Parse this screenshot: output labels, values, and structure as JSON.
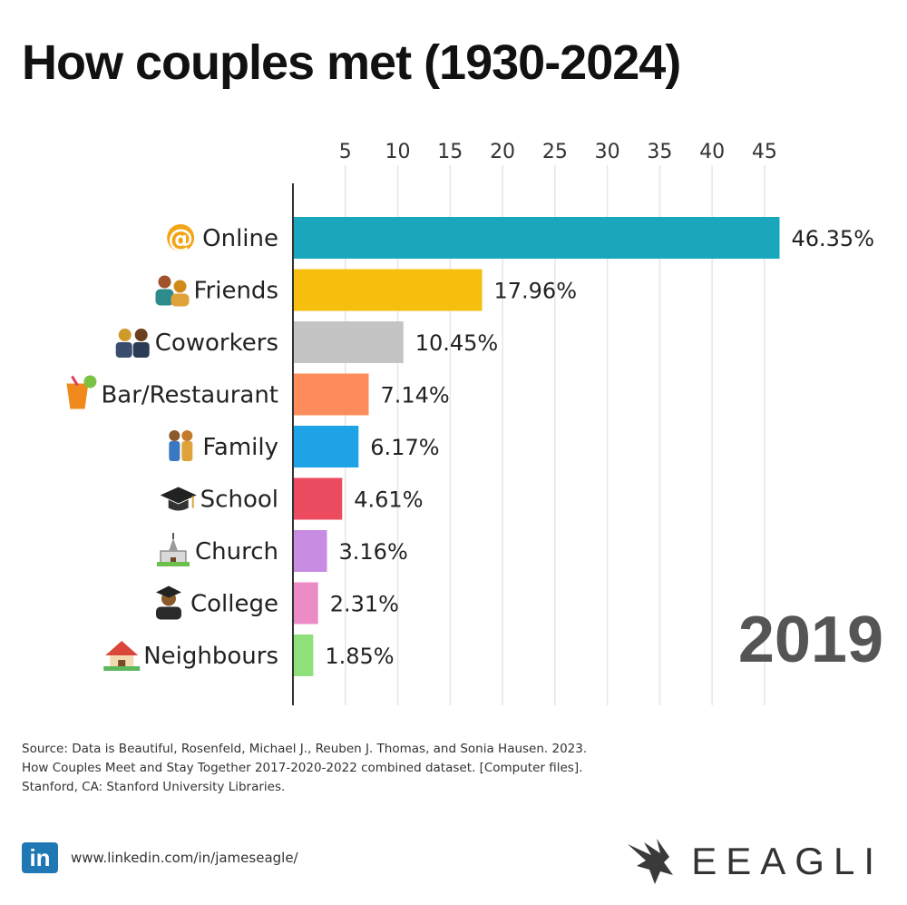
{
  "title": "How couples met (1930-2024)",
  "year": "2019",
  "chart_data": {
    "type": "bar",
    "orientation": "horizontal",
    "title": "How couples met (1930-2024)",
    "xlim": [
      0,
      47
    ],
    "x_ticks": [
      5,
      10,
      15,
      20,
      25,
      30,
      35,
      40,
      45
    ],
    "x_axis_position": "top",
    "grid": true,
    "categories": [
      "Online",
      "Friends",
      "Coworkers",
      "Bar/Restaurant",
      "Family",
      "School",
      "Church",
      "College",
      "Neighbours"
    ],
    "values": [
      46.35,
      17.96,
      10.45,
      7.14,
      6.17,
      4.61,
      3.16,
      2.31,
      1.85
    ],
    "value_labels": [
      "46.35%",
      "17.96%",
      "10.45%",
      "7.14%",
      "6.17%",
      "4.61%",
      "3.16%",
      "2.31%",
      "1.85%"
    ],
    "colors": [
      "#1aa6bc",
      "#f6be0d",
      "#c4c4c4",
      "#fc8c5c",
      "#1ea3e6",
      "#ec4a5f",
      "#c88ce3",
      "#eb8cc6",
      "#8fe07a"
    ],
    "icons": [
      "at-sign-icon",
      "friends-icon",
      "coworkers-icon",
      "tropical-drink-icon",
      "family-icon",
      "graduation-cap-icon",
      "church-icon",
      "graduate-icon",
      "house-icon"
    ]
  },
  "source": [
    "Source: Data is Beautiful, Rosenfeld, Michael J., Reuben J. Thomas, and Sonia Hausen. 2023.",
    "How Couples Meet and Stay Together 2017-2020-2022 combined dataset. [Computer files].",
    "Stanford, CA: Stanford University Libraries."
  ],
  "linkedin": {
    "icon": "linkedin-icon",
    "label": "in",
    "url": "www.linkedin.com/in/jameseagle/"
  },
  "brand": {
    "name": "EEAGLI",
    "icon": "eagle-icon"
  }
}
